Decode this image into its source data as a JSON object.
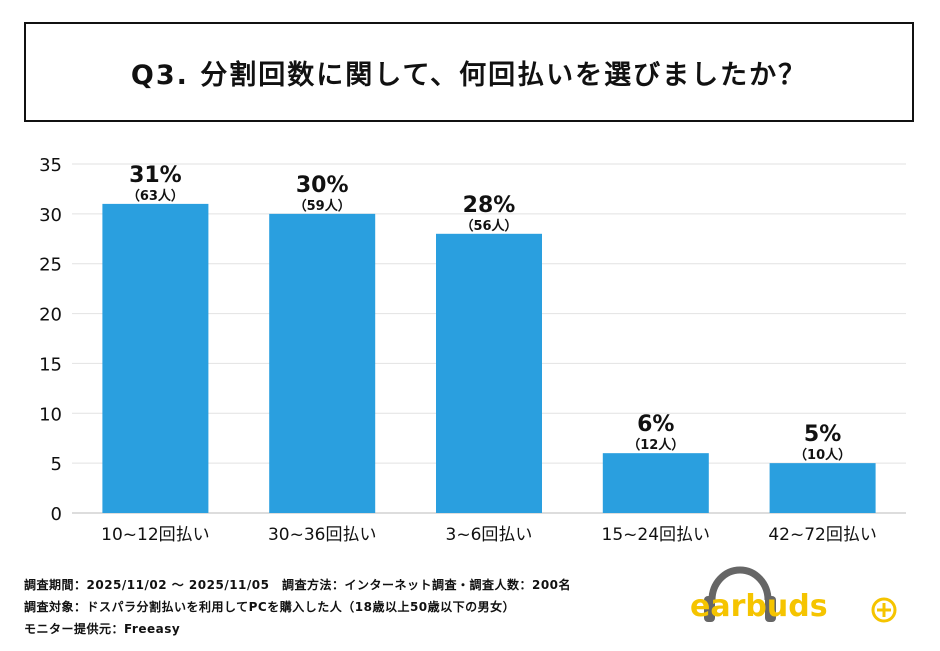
{
  "title": "Q3. 分割回数に関して、何回払いを選びましたか？",
  "chart_data": {
    "type": "bar",
    "categories": [
      "10~12回払い",
      "30~36回払い",
      "3~6回払い",
      "15~24回払い",
      "42~72回払い"
    ],
    "values": [
      31,
      30,
      28,
      6,
      5
    ],
    "value_labels": [
      "31%",
      "30%",
      "28%",
      "6%",
      "5%"
    ],
    "count_labels": [
      "（63人）",
      "（59人）",
      "（56人）",
      "（12人）",
      "（10人）"
    ],
    "ylim": [
      0,
      35
    ],
    "yticks": [
      0,
      5,
      10,
      15,
      20,
      25,
      30,
      35
    ],
    "grid": true,
    "bar_color": "#2a9fdf"
  },
  "footer": {
    "line1": "調査期間：2025/11/02 ～ 2025/11/05　調査方法：インターネット調査・調査人数：200名",
    "line2": "調査対象：ドスパラ分割払いを利用してPCを購入した人（18歳以上50歳以下の男女）",
    "line3": "モニター提供元：Freeasy"
  },
  "logo": {
    "text": "earbuds",
    "icon": "headphones-icon",
    "plus_icon": "plus-circle-icon",
    "color": "#f5c400",
    "headphone_color": "#666666"
  }
}
